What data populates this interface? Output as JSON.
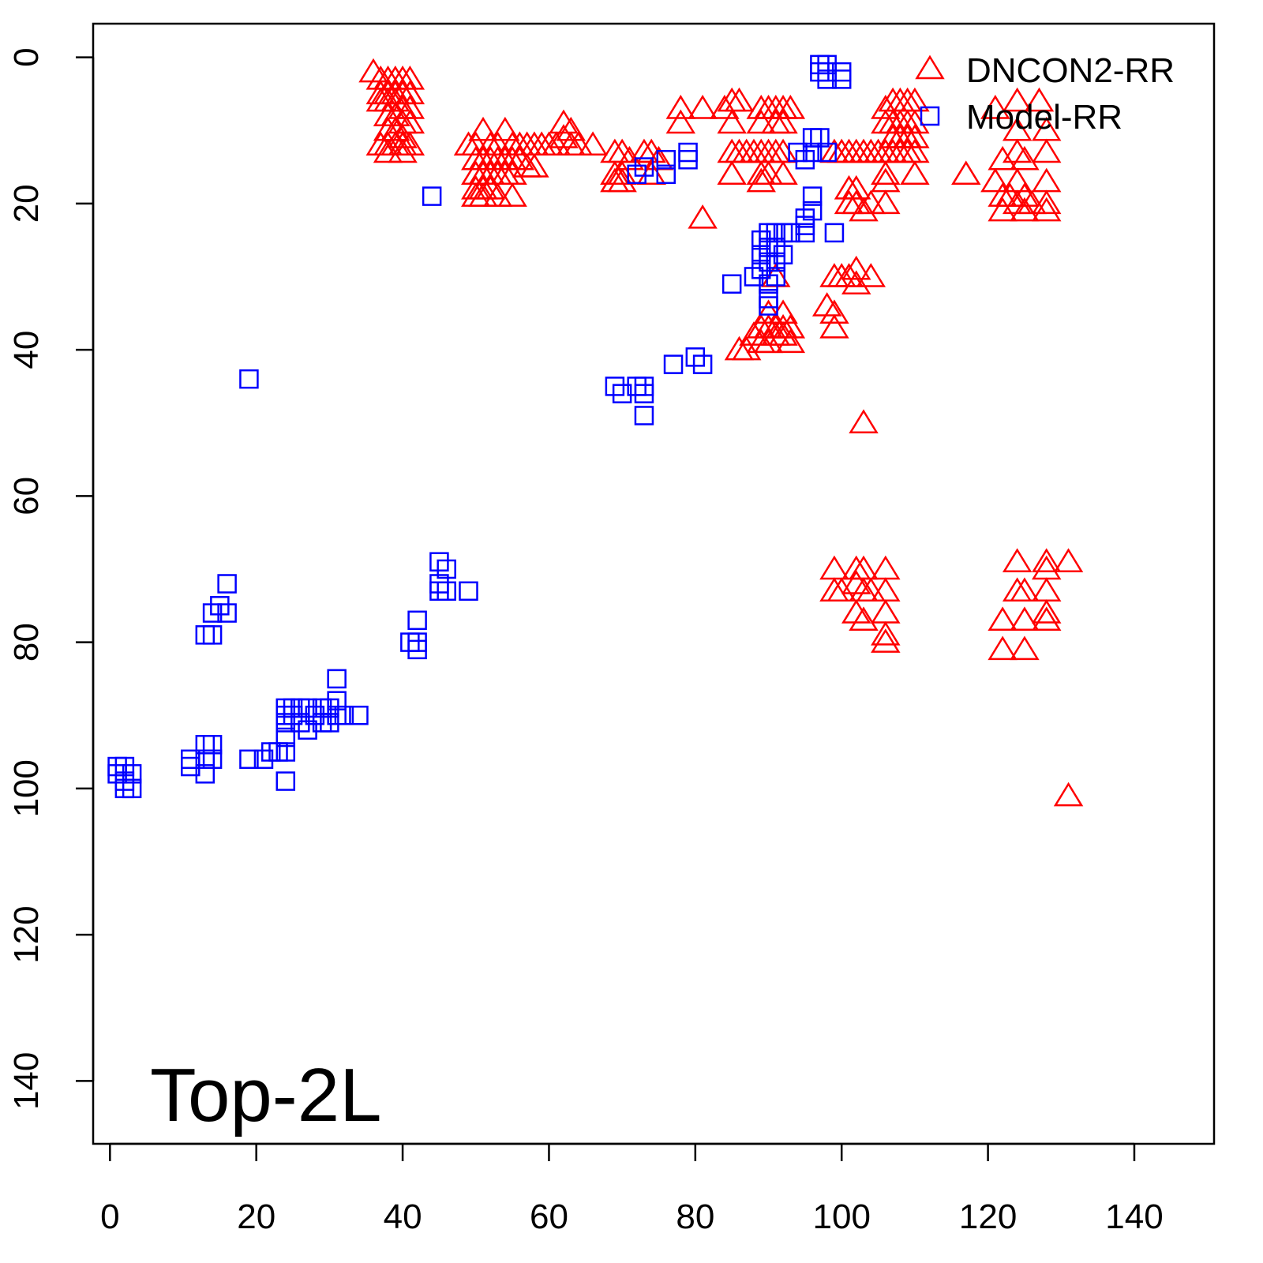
{
  "chart_data": {
    "type": "scatter",
    "title": "",
    "annotation": "Top-2L",
    "xlabel": "",
    "ylabel": "",
    "xlim": [
      -2.3,
      150.9
    ],
    "ylim": [
      -4.6,
      148.6
    ],
    "y_reversed": true,
    "x_ticks": [
      0,
      20,
      40,
      60,
      80,
      100,
      120,
      140
    ],
    "y_ticks": [
      0,
      20,
      40,
      60,
      80,
      100,
      120,
      140
    ],
    "grid": false,
    "legend_position": "top-right",
    "series": [
      {
        "name": "DNCON2-RR",
        "marker": "triangle",
        "color": "#ff0000",
        "points": [
          [
            36,
            2
          ],
          [
            37,
            3
          ],
          [
            38,
            3
          ],
          [
            39,
            3
          ],
          [
            40,
            3
          ],
          [
            41,
            3
          ],
          [
            37,
            5
          ],
          [
            38,
            5
          ],
          [
            39,
            5
          ],
          [
            40,
            5
          ],
          [
            41,
            5
          ],
          [
            37,
            6
          ],
          [
            38,
            6
          ],
          [
            39,
            6
          ],
          [
            40,
            7
          ],
          [
            41,
            7
          ],
          [
            38,
            8
          ],
          [
            39,
            8
          ],
          [
            40,
            9
          ],
          [
            41,
            9
          ],
          [
            38,
            10
          ],
          [
            39,
            10
          ],
          [
            40,
            11
          ],
          [
            37,
            12
          ],
          [
            38,
            12
          ],
          [
            39,
            12
          ],
          [
            40,
            12
          ],
          [
            41,
            12
          ],
          [
            38,
            13
          ],
          [
            40,
            13
          ],
          [
            49,
            12
          ],
          [
            50,
            12
          ],
          [
            51,
            10
          ],
          [
            52,
            12
          ],
          [
            53,
            12
          ],
          [
            54,
            10
          ],
          [
            55,
            12
          ],
          [
            56,
            12
          ],
          [
            57,
            12
          ],
          [
            58,
            12
          ],
          [
            59,
            12
          ],
          [
            60,
            12
          ],
          [
            50,
            14
          ],
          [
            51,
            14
          ],
          [
            52,
            14
          ],
          [
            53,
            14
          ],
          [
            54,
            14
          ],
          [
            55,
            14
          ],
          [
            56,
            14
          ],
          [
            57,
            15
          ],
          [
            58,
            15
          ],
          [
            50,
            16
          ],
          [
            51,
            16
          ],
          [
            52,
            16
          ],
          [
            53,
            16
          ],
          [
            54,
            16
          ],
          [
            55,
            16
          ],
          [
            50,
            18
          ],
          [
            51,
            18
          ],
          [
            52,
            18
          ],
          [
            50,
            19
          ],
          [
            51,
            19
          ],
          [
            53,
            19
          ],
          [
            55,
            19
          ],
          [
            62,
            9
          ],
          [
            62,
            11
          ],
          [
            63,
            10
          ],
          [
            63,
            12
          ],
          [
            64,
            12
          ],
          [
            61,
            12
          ],
          [
            66,
            12
          ],
          [
            69,
            13
          ],
          [
            70,
            13
          ],
          [
            71,
            14
          ],
          [
            69,
            16
          ],
          [
            70,
            16
          ],
          [
            69,
            17
          ],
          [
            70,
            17
          ],
          [
            73,
            13
          ],
          [
            74,
            13
          ],
          [
            75,
            14
          ],
          [
            74,
            16
          ],
          [
            78,
            7
          ],
          [
            78,
            9
          ],
          [
            81,
            7
          ],
          [
            84,
            7
          ],
          [
            81,
            22
          ],
          [
            85,
            6
          ],
          [
            86,
            6
          ],
          [
            85,
            9
          ],
          [
            89,
            7
          ],
          [
            90,
            7
          ],
          [
            91,
            7
          ],
          [
            92,
            7
          ],
          [
            93,
            7
          ],
          [
            89,
            9
          ],
          [
            91,
            9
          ],
          [
            92,
            9
          ],
          [
            85,
            13
          ],
          [
            86,
            13
          ],
          [
            87,
            13
          ],
          [
            88,
            13
          ],
          [
            89,
            13
          ],
          [
            90,
            13
          ],
          [
            91,
            13
          ],
          [
            92,
            13
          ],
          [
            89,
            16
          ],
          [
            90,
            16
          ],
          [
            92,
            16
          ],
          [
            85,
            16
          ],
          [
            89,
            17
          ],
          [
            86,
            40
          ],
          [
            87,
            40
          ],
          [
            88,
            38
          ],
          [
            89,
            37
          ],
          [
            90,
            37
          ],
          [
            91,
            37
          ],
          [
            92,
            37
          ],
          [
            93,
            37
          ],
          [
            89,
            39
          ],
          [
            90,
            39
          ],
          [
            91,
            38
          ],
          [
            92,
            38
          ],
          [
            93,
            39
          ],
          [
            90,
            35
          ],
          [
            92,
            35
          ],
          [
            91,
            30
          ],
          [
            98,
            34
          ],
          [
            99,
            35
          ],
          [
            99,
            37
          ],
          [
            99,
            30
          ],
          [
            100,
            30
          ],
          [
            101,
            30
          ],
          [
            102,
            29
          ],
          [
            102,
            31
          ],
          [
            104,
            30
          ],
          [
            101,
            18
          ],
          [
            102,
            18
          ],
          [
            102,
            20
          ],
          [
            103,
            21
          ],
          [
            104,
            20
          ],
          [
            106,
            20
          ],
          [
            101,
            20
          ],
          [
            99,
            13
          ],
          [
            100,
            13
          ],
          [
            101,
            13
          ],
          [
            102,
            13
          ],
          [
            103,
            13
          ],
          [
            104,
            13
          ],
          [
            105,
            13
          ],
          [
            106,
            13
          ],
          [
            107,
            13
          ],
          [
            108,
            13
          ],
          [
            109,
            13
          ],
          [
            110,
            13
          ],
          [
            106,
            7
          ],
          [
            107,
            6
          ],
          [
            108,
            6
          ],
          [
            109,
            6
          ],
          [
            110,
            6
          ],
          [
            106,
            9
          ],
          [
            107,
            9
          ],
          [
            108,
            9
          ],
          [
            109,
            9
          ],
          [
            110,
            9
          ],
          [
            107,
            11
          ],
          [
            108,
            11
          ],
          [
            109,
            11
          ],
          [
            110,
            11
          ],
          [
            106,
            16
          ],
          [
            106,
            17
          ],
          [
            110,
            16
          ],
          [
            117,
            16
          ],
          [
            121,
            7
          ],
          [
            122,
            14
          ],
          [
            121,
            17
          ],
          [
            122,
            19
          ],
          [
            122,
            21
          ],
          [
            123,
            19
          ],
          [
            124,
            6
          ],
          [
            124,
            10
          ],
          [
            124,
            13
          ],
          [
            124,
            17
          ],
          [
            124,
            20
          ],
          [
            125,
            19
          ],
          [
            125,
            21
          ],
          [
            126,
            20
          ],
          [
            127,
            6
          ],
          [
            128,
            10
          ],
          [
            128,
            13
          ],
          [
            128,
            17
          ],
          [
            128,
            20
          ],
          [
            128,
            21
          ],
          [
            125,
            14
          ],
          [
            99,
            70
          ],
          [
            99,
            73
          ],
          [
            100,
            73
          ],
          [
            102,
            70
          ],
          [
            103,
            70
          ],
          [
            102,
            72
          ],
          [
            103,
            73
          ],
          [
            104,
            73
          ],
          [
            106,
            70
          ],
          [
            106,
            73
          ],
          [
            102,
            76
          ],
          [
            103,
            77
          ],
          [
            106,
            76
          ],
          [
            106,
            79
          ],
          [
            106,
            80
          ],
          [
            103,
            50
          ],
          [
            124,
            69
          ],
          [
            124,
            73
          ],
          [
            125,
            73
          ],
          [
            122,
            77
          ],
          [
            125,
            77
          ],
          [
            128,
            69
          ],
          [
            128,
            70
          ],
          [
            128,
            73
          ],
          [
            128,
            76
          ],
          [
            128,
            77
          ],
          [
            131,
            69
          ],
          [
            122,
            81
          ],
          [
            125,
            81
          ],
          [
            131,
            101
          ]
        ]
      },
      {
        "name": "Model-RR",
        "marker": "square",
        "color": "#0000ff",
        "points": [
          [
            44,
            19
          ],
          [
            19,
            44
          ],
          [
            16,
            72
          ],
          [
            15,
            75
          ],
          [
            14,
            76
          ],
          [
            16,
            76
          ],
          [
            13,
            79
          ],
          [
            14,
            79
          ],
          [
            45,
            69
          ],
          [
            46,
            70
          ],
          [
            45,
            72
          ],
          [
            45,
            73
          ],
          [
            46,
            73
          ],
          [
            49,
            73
          ],
          [
            42,
            77
          ],
          [
            41,
            80
          ],
          [
            42,
            80
          ],
          [
            42,
            81
          ],
          [
            31,
            85
          ],
          [
            24,
            89
          ],
          [
            25,
            89
          ],
          [
            26,
            89
          ],
          [
            27,
            89
          ],
          [
            28,
            90
          ],
          [
            29,
            89
          ],
          [
            30,
            89
          ],
          [
            31,
            88
          ],
          [
            32,
            90
          ],
          [
            34,
            90
          ],
          [
            24,
            90
          ],
          [
            25,
            90
          ],
          [
            26,
            91
          ],
          [
            27,
            92
          ],
          [
            29,
            91
          ],
          [
            30,
            91
          ],
          [
            31,
            90
          ],
          [
            24,
            91
          ],
          [
            24,
            93
          ],
          [
            23,
            95
          ],
          [
            24,
            95
          ],
          [
            22,
            95
          ],
          [
            21,
            96
          ],
          [
            19,
            96
          ],
          [
            24,
            99
          ],
          [
            11,
            96
          ],
          [
            11,
            97
          ],
          [
            13,
            94
          ],
          [
            14,
            94
          ],
          [
            13,
            96
          ],
          [
            14,
            96
          ],
          [
            13,
            98
          ],
          [
            1,
            97
          ],
          [
            2,
            97
          ],
          [
            1,
            98
          ],
          [
            2,
            99
          ],
          [
            3,
            98
          ],
          [
            3,
            100
          ],
          [
            2,
            100
          ],
          [
            72,
            16
          ],
          [
            73,
            15
          ],
          [
            69,
            45
          ],
          [
            70,
            46
          ],
          [
            72,
            45
          ],
          [
            73,
            45
          ],
          [
            73,
            46
          ],
          [
            73,
            49
          ],
          [
            77,
            42
          ],
          [
            80,
            41
          ],
          [
            81,
            42
          ],
          [
            85,
            31
          ],
          [
            88,
            30
          ],
          [
            89,
            29
          ],
          [
            89,
            25
          ],
          [
            89,
            27
          ],
          [
            90,
            24
          ],
          [
            90,
            26
          ],
          [
            90,
            28
          ],
          [
            90,
            31
          ],
          [
            90,
            33
          ],
          [
            90,
            34
          ],
          [
            91,
            24
          ],
          [
            91,
            26
          ],
          [
            91,
            28
          ],
          [
            91,
            30
          ],
          [
            92,
            24
          ],
          [
            92,
            27
          ],
          [
            93,
            24
          ],
          [
            95,
            24
          ],
          [
            95,
            23
          ],
          [
            95,
            22
          ],
          [
            96,
            21
          ],
          [
            96,
            19
          ],
          [
            94,
            13
          ],
          [
            95,
            14
          ],
          [
            96,
            13
          ],
          [
            96,
            11
          ],
          [
            97,
            11
          ],
          [
            98,
            13
          ],
          [
            99,
            24
          ],
          [
            76,
            14
          ],
          [
            76,
            16
          ],
          [
            79,
            13
          ],
          [
            79,
            14
          ],
          [
            97,
            1
          ],
          [
            98,
            1
          ],
          [
            98,
            2
          ],
          [
            98,
            3
          ],
          [
            100,
            2
          ],
          [
            100,
            3
          ],
          [
            97,
            2
          ]
        ]
      }
    ]
  }
}
